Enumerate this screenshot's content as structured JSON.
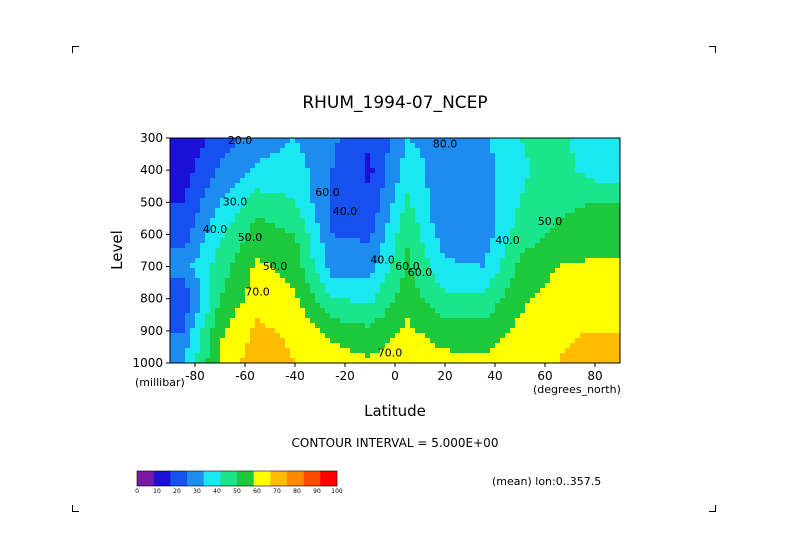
{
  "chart_data": {
    "type": "heatmap",
    "subtype": "filled-contour",
    "title": "RHUM_1994-07_NCEP",
    "xlabel": "Latitude",
    "xunit": "(degrees_north)",
    "ylabel": "Level",
    "yunit": "(millibar)",
    "xlim": [
      -90,
      90
    ],
    "ylim": [
      1000,
      300
    ],
    "xticks": [
      "-80",
      "-60",
      "-40",
      "-20",
      "0",
      "20",
      "40",
      "60",
      "80"
    ],
    "yticks": [
      "300",
      "400",
      "500",
      "600",
      "700",
      "800",
      "900",
      "1000"
    ],
    "contour_interval_text": "CONTOUR INTERVAL = 5.000E+00",
    "mean_text": "(mean) lon:0..357.5",
    "colorbar": {
      "labels": [
        "0",
        "10",
        "20",
        "30",
        "40",
        "50",
        "60",
        "70",
        "80",
        "90",
        "100"
      ],
      "colors": [
        "#7a18a8",
        "#1a10d8",
        "#1650f0",
        "#1c8cf0",
        "#19e8f0",
        "#19e58a",
        "#1ec83c",
        "#ffff00",
        "#ffbb00",
        "#ff8800",
        "#ff4a00",
        "#ff0000"
      ]
    },
    "contour_labels": [
      "20.0",
      "40.0",
      "30.0",
      "40.0",
      "40.0",
      "50.0",
      "50.0",
      "60.0",
      "60.0",
      "70.0",
      "60.0",
      "70.0",
      "80.0",
      "40.0",
      "50.0"
    ],
    "field_description_points": {
      "lat": [
        -85,
        -70,
        -55,
        -40,
        -25,
        -10,
        5,
        20,
        35,
        50,
        65,
        80
      ],
      "pressure": [
        300,
        400,
        500,
        600,
        700,
        800,
        900,
        1000
      ],
      "rh": [
        [
          10,
          25,
          35,
          40,
          32,
          20,
          40,
          35,
          38,
          50,
          55,
          40
        ],
        [
          15,
          32,
          42,
          45,
          30,
          18,
          45,
          35,
          35,
          48,
          55,
          45
        ],
        [
          20,
          40,
          55,
          50,
          28,
          22,
          52,
          30,
          35,
          50,
          58,
          60
        ],
        [
          25,
          48,
          65,
          60,
          30,
          28,
          58,
          34,
          34,
          55,
          62,
          65
        ],
        [
          35,
          55,
          72,
          66,
          36,
          36,
          62,
          42,
          40,
          62,
          70,
          72
        ],
        [
          20,
          60,
          76,
          72,
          50,
          48,
          66,
          52,
          52,
          68,
          74,
          76
        ],
        [
          30,
          68,
          82,
          78,
          66,
          62,
          72,
          64,
          64,
          72,
          78,
          80
        ],
        [
          40,
          72,
          86,
          80,
          76,
          72,
          80,
          74,
          72,
          78,
          80,
          86
        ]
      ]
    }
  }
}
